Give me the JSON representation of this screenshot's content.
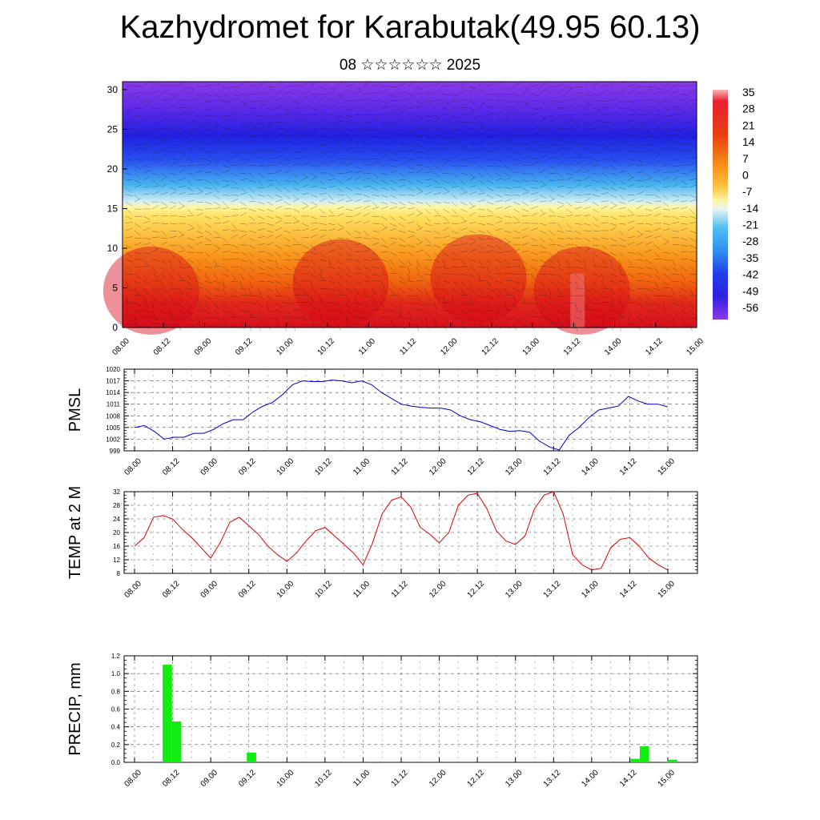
{
  "title": "Kazhydromet for Karabutak(49.95 60.13)",
  "subtitle": "08 ☆☆☆☆☆☆ 2025",
  "chart_data": [
    {
      "type": "heatmap",
      "name": "cross-section",
      "x_tick_labels": [
        "08.00",
        "08.12",
        "09.00",
        "09.12",
        "10.00",
        "10.12",
        "11.00",
        "11.12",
        "12.00",
        "12.12",
        "13.00",
        "13.12",
        "14.00",
        "14.12",
        "15.00"
      ],
      "y_tick_labels": [
        "0",
        "5",
        "10",
        "15",
        "20",
        "25",
        "30"
      ],
      "ylim": [
        0,
        31
      ],
      "colorbar_labels": [
        "35",
        "28",
        "21",
        "14",
        "7",
        "0",
        "-7",
        "-14",
        "-21",
        "-28",
        "-35",
        "-42",
        "-49",
        "-56"
      ],
      "colors": {
        "hot": "#d81020",
        "warm": "#f89010",
        "neutral": "#fff0a0",
        "cool": "#40b0f0",
        "cold": "#1818e0",
        "coldest": "#8030e0"
      }
    },
    {
      "type": "line",
      "name": "pmsl",
      "ylabel": "PMSL",
      "x_tick_labels": [
        "08.00",
        "08.12",
        "09.00",
        "09.12",
        "10.00",
        "10.12",
        "11.00",
        "11.12",
        "12.00",
        "12.12",
        "13.00",
        "13.12",
        "14.00",
        "14.12",
        "15.00"
      ],
      "y_tick_labels": [
        "999",
        "1002",
        "1005",
        "1008",
        "1011",
        "1014",
        "1017",
        "1020"
      ],
      "ylim": [
        999,
        1020
      ],
      "color": "#0000d0",
      "values": [
        1005,
        1005.5,
        1004,
        1002,
        1002.5,
        1002.5,
        1003.5,
        1003.5,
        1004.5,
        1006,
        1007,
        1007,
        1009,
        1010.5,
        1011.5,
        1013.5,
        1016,
        1017,
        1016.8,
        1016.8,
        1017.2,
        1017,
        1016.5,
        1017,
        1016,
        1014,
        1012.5,
        1011,
        1010.5,
        1010.2,
        1010,
        1010,
        1009.5,
        1008,
        1007,
        1006.5,
        1005.5,
        1004.5,
        1004,
        1004.2,
        1003.8,
        1001.5,
        1000,
        999.2,
        1003,
        1005,
        1007.5,
        1009.5,
        1010,
        1010.5,
        1013,
        1011.8,
        1011,
        1011,
        1010.3
      ]
    },
    {
      "type": "line",
      "name": "temp2m",
      "ylabel": "TEMP at 2 M",
      "x_tick_labels": [
        "08.00",
        "08.12",
        "09.00",
        "09.12",
        "10.00",
        "10.12",
        "11.00",
        "11.12",
        "12.00",
        "12.12",
        "13.00",
        "13.12",
        "14.00",
        "14.12",
        "15.00"
      ],
      "y_tick_labels": [
        "8",
        "12",
        "16",
        "20",
        "24",
        "28",
        "32"
      ],
      "ylim": [
        8,
        32
      ],
      "color": "#e00000",
      "values": [
        16,
        18.5,
        24.5,
        25,
        24,
        21,
        18.5,
        15.5,
        12.5,
        17,
        23,
        24.5,
        22,
        19.5,
        16,
        13.5,
        11.5,
        14,
        17.5,
        20.5,
        21.5,
        19,
        16.5,
        14,
        10.5,
        17,
        25.5,
        29.5,
        30.5,
        27.5,
        21.5,
        19.5,
        17,
        20,
        28,
        31,
        31.5,
        27,
        20.5,
        17.5,
        16.5,
        19,
        27,
        31,
        32,
        25.5,
        13.5,
        10.5,
        9,
        9.5,
        15.5,
        18,
        18.5,
        16,
        12.5,
        10.5,
        9
      ]
    },
    {
      "type": "bar",
      "name": "precip",
      "ylabel": "PRECIP, mm",
      "x_tick_labels": [
        "08.00",
        "08.12",
        "09.00",
        "09.12",
        "10.00",
        "10.12",
        "11.00",
        "11.12",
        "12.00",
        "12.12",
        "13.00",
        "13.12",
        "14.00",
        "14.12",
        "15.00"
      ],
      "y_tick_labels": [
        "0.0",
        "0.2",
        "0.4",
        "0.6",
        "0.8",
        "1.0",
        "1.2"
      ],
      "ylim": [
        0,
        1.2
      ],
      "color": "#10ee10",
      "values": [
        0,
        0,
        0,
        1.1,
        0.46,
        0,
        0,
        0,
        0,
        0,
        0,
        0,
        0.11,
        0,
        0,
        0,
        0,
        0,
        0,
        0,
        0,
        0,
        0,
        0,
        0,
        0.01,
        0,
        0,
        0,
        0,
        0,
        0,
        0,
        0,
        0,
        0,
        0,
        0,
        0,
        0,
        0,
        0,
        0,
        0,
        0,
        0.01,
        0,
        0,
        0,
        0,
        0,
        0,
        0,
        0.04,
        0.18,
        0,
        0.01,
        0.03
      ]
    }
  ]
}
